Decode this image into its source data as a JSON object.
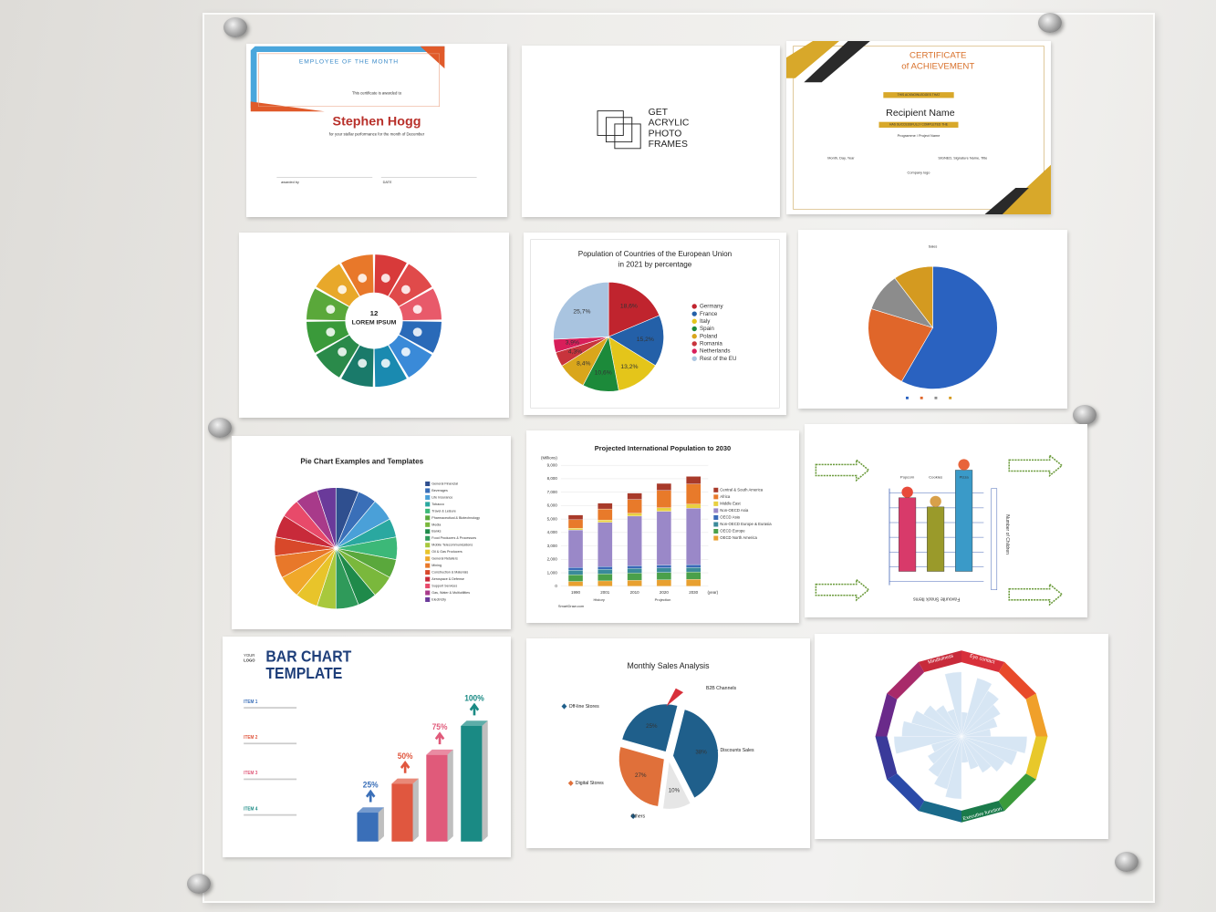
{
  "panels": [
    {
      "heading": "EMPLOYEE OF THE MONTH",
      "intro": "This certificate is awarded to",
      "name": "Stephen Hogg",
      "reason": "for your stellar performance for the month of December",
      "awarded": "awarded by",
      "date": "DATE"
    },
    {
      "lines": [
        "GET",
        "ACRYLIC",
        "PHOTO",
        "FRAMES"
      ]
    },
    {
      "heading": [
        "CERTIFICATE",
        "of ACHIEVEMENT"
      ],
      "ribbon1": "THIS ACKNOWLEDGES THAT",
      "name": "Recipient Name",
      "ribbon2": "HAS SUCCESSFULLY COMPLETED THE",
      "programme": "Programme / Project Name",
      "date": "Month, Day, Year",
      "signed": "SIGNED, Signature Name, Title",
      "logo": "Company logo"
    },
    {
      "number": "12",
      "center": "LOREM IPSUM"
    },
    {
      "type": "pie",
      "title": [
        "Population of Countries of the European Union",
        "in 2021 by percentage"
      ],
      "categories": [
        "Germany",
        "France",
        "Italy",
        "Spain",
        "Poland",
        "Romania",
        "Netherlands",
        "Rest of the EU"
      ],
      "values": [
        18.6,
        15.2,
        13.2,
        10.6,
        8.4,
        4.3,
        3.9,
        25.7
      ],
      "value_labels": [
        "18,6%",
        "15,2%",
        "13,2%",
        "10,6%",
        "8,4%",
        "4,3%",
        "3,9%",
        "25,7%"
      ],
      "colors": [
        "#c0242e",
        "#2460a8",
        "#e4c51a",
        "#1c8a3a",
        "#d9a61c",
        "#c8343c",
        "#d81e5a",
        "#a9c4e0"
      ]
    },
    {
      "type": "pie",
      "title": "Sales",
      "values": [
        58,
        22,
        10,
        10
      ],
      "colors": [
        "#2a62c0",
        "#e0662a",
        "#8c8c8c",
        "#d49a20"
      ]
    },
    {
      "type": "pie",
      "title": "Pie Chart Examples and Templates",
      "categories": [
        "General Financial",
        "Beverages",
        "Life Insurance",
        "Tobacco",
        "Travel & Leisure",
        "Pharmaceutical & Biotechnology",
        "Media",
        "Banks",
        "Food Producers & Processors",
        "Mobile Telecommunications",
        "Oil & Gas Producers",
        "General Retailers",
        "Mining",
        "Construction & Materials",
        "Aerospace & Defense",
        "Support Services",
        "Gas, Water & Multiutilities",
        "Electricity"
      ],
      "values": [
        6,
        5,
        6,
        5,
        6,
        5,
        6,
        5,
        6,
        5,
        6,
        6,
        6,
        5,
        6,
        5,
        6,
        5
      ],
      "colors": [
        "#2f4f8f",
        "#3a6fb8",
        "#4aa0d8",
        "#2aa8a0",
        "#3cb878",
        "#5aa83c",
        "#7ab83c",
        "#1f8a4a",
        "#2f9a5a",
        "#a8c83c",
        "#e8c42a",
        "#f0a82a",
        "#e8782a",
        "#d8482a",
        "#c82a3a",
        "#e84a6a",
        "#a83a8a",
        "#6a3a9a"
      ]
    },
    {
      "type": "bar",
      "title": "Projected International Population to 2030",
      "unit": "(Millions)",
      "xlabel": "(year)",
      "history": "History",
      "projection": "Projection",
      "source": "SmartDraw.com",
      "categories": [
        "1990",
        "2001",
        "2010",
        "2020",
        "2030"
      ],
      "ylim": [
        0,
        9000
      ],
      "yticks": [
        0,
        {
          "value": 1000,
          "label": "1,000"
        },
        {
          "value": 2000,
          "label": "2,000"
        },
        {
          "value": 3000,
          "label": "3,000"
        },
        {
          "value": 4000,
          "label": "4,000"
        },
        {
          "value": 5000,
          "label": "5,000"
        },
        {
          "value": 6000,
          "label": "6,000"
        },
        {
          "value": 7000,
          "label": "7,000"
        },
        {
          "value": 8000,
          "label": "8,000"
        },
        {
          "value": 9000,
          "label": "9,000"
        }
      ],
      "series": [
        {
          "name": "OECD North America",
          "color": "#e8a030",
          "values": [
            360,
            400,
            440,
            480,
            510
          ]
        },
        {
          "name": "OECD Europe",
          "color": "#4aa04a",
          "values": [
            500,
            520,
            540,
            550,
            555
          ]
        },
        {
          "name": "Non-OECD Europe & Eurasia",
          "color": "#3a8a9a",
          "values": [
            340,
            340,
            340,
            340,
            335
          ]
        },
        {
          "name": "OECD Asia",
          "color": "#3a6ab8",
          "values": [
            190,
            200,
            200,
            210,
            210
          ]
        },
        {
          "name": "Non-OECD Asia",
          "color": "#9a88c8",
          "values": [
            2800,
            3300,
            3700,
            4000,
            4200
          ]
        },
        {
          "name": "Middle East",
          "color": "#e8d040",
          "values": [
            130,
            170,
            210,
            260,
            300
          ]
        },
        {
          "name": "Africa",
          "color": "#e87a2a",
          "values": [
            630,
            820,
            1030,
            1290,
            1500
          ]
        },
        {
          "name": "Central & South America",
          "color": "#a83a2a",
          "values": [
            350,
            430,
            470,
            520,
            560
          ]
        }
      ]
    },
    {
      "yaxis": "Number of Children",
      "xaxis": "Favourite Snack Items",
      "items": [
        "Popcorn",
        "Cookies",
        "Pizza"
      ]
    },
    {
      "type": "bar",
      "logo": [
        "YOUR",
        "LOGO"
      ],
      "title": [
        "BAR CHART",
        "TEMPLATE"
      ],
      "categories": [
        "ITEM 1",
        "ITEM 2",
        "ITEM 3",
        "ITEM 4"
      ],
      "values": [
        25,
        50,
        75,
        100
      ],
      "value_labels": [
        "25%",
        "50%",
        "75%",
        "100%"
      ],
      "colors": [
        "#3a6fb8",
        "#e0573f",
        "#e05a7a",
        "#1a8a84"
      ]
    },
    {
      "type": "pie",
      "title": "Monthly Sales Analysis",
      "categories": [
        "Discounts Sales",
        "Others",
        "Digital Stores",
        "Off-line Stores"
      ],
      "values": [
        38,
        10,
        27,
        25
      ],
      "value_labels": [
        "38%",
        "10%",
        "27%",
        "25%"
      ],
      "colors": [
        "#1f5f8b",
        "#e6e6e6",
        "#e0703a",
        "#1f5f8b"
      ],
      "extra": "B2B Channels"
    },
    {
      "labels": [
        "Eye contact",
        "Mindfulness",
        "Executive function"
      ]
    }
  ]
}
